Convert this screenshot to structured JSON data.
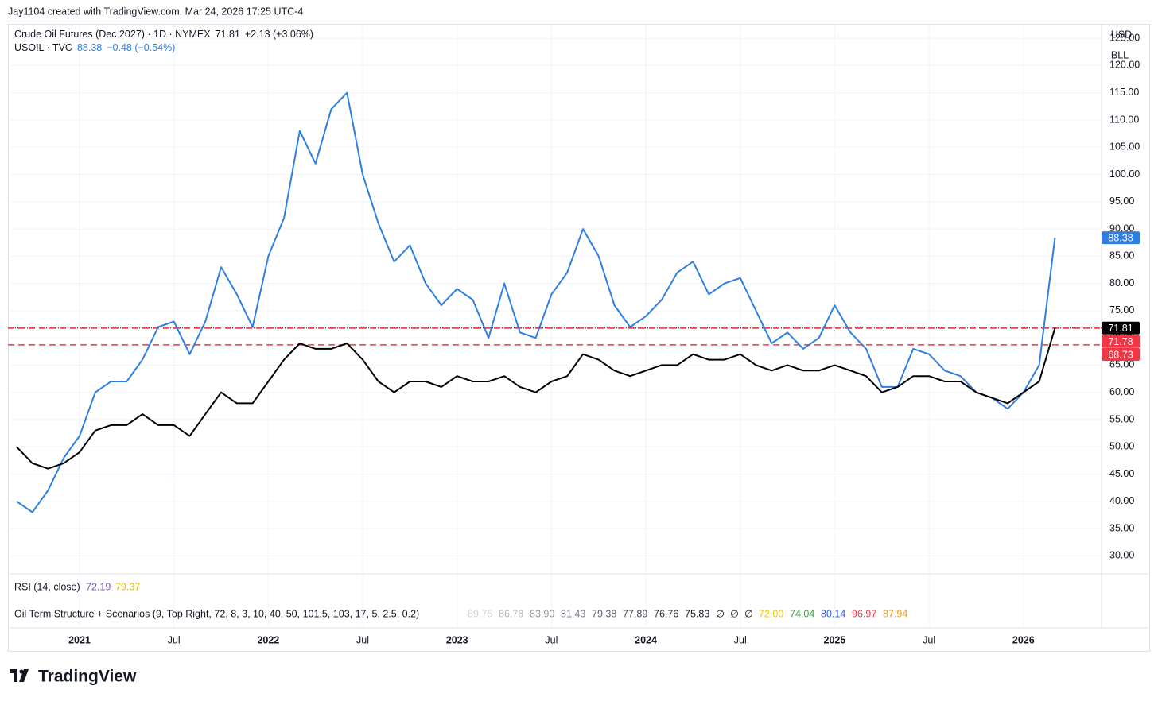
{
  "header": {
    "credit": "Jay1104 created with TradingView.com, Mar 24, 2026 17:25 UTC-4",
    "brand": "TradingView"
  },
  "chart_data": {
    "type": "line",
    "currency": "USD",
    "unit": "BLL",
    "categories": [
      null,
      null,
      null,
      null,
      "2021",
      null,
      null,
      null,
      null,
      null,
      "Jul",
      null,
      null,
      null,
      null,
      null,
      "2022",
      null,
      null,
      null,
      null,
      null,
      "Jul",
      null,
      null,
      null,
      null,
      null,
      "2023",
      null,
      null,
      null,
      null,
      null,
      "Jul",
      null,
      null,
      null,
      null,
      null,
      "2024",
      null,
      null,
      null,
      null,
      null,
      "Jul",
      null,
      null,
      null,
      null,
      null,
      "2025",
      null,
      null,
      null,
      null,
      null,
      "Jul",
      null,
      null,
      null,
      null,
      null,
      "2026",
      null,
      null
    ],
    "bold_labels": [
      "2021",
      "2022",
      "2023",
      "2024",
      "2025",
      "2026"
    ],
    "series": [
      {
        "name": "Crude Oil Futures (Dec 2027) · 1D · NYMEX",
        "last": 71.81,
        "change": "+2.13 (+3.06%)",
        "color": "#000000",
        "values": [
          50,
          47,
          46,
          47,
          49,
          53,
          54,
          54,
          56,
          54,
          54,
          52,
          56,
          60,
          58,
          58,
          62,
          66,
          69,
          68,
          68,
          69,
          66,
          62,
          60,
          62,
          62,
          61,
          63,
          62,
          62,
          63,
          61,
          60,
          62,
          63,
          67,
          66,
          64,
          63,
          64,
          65,
          65,
          67,
          66,
          66,
          67,
          65,
          64,
          65,
          64,
          64,
          65,
          64,
          63,
          60,
          61,
          63,
          63,
          62,
          62,
          60,
          59,
          58,
          60,
          62,
          71.81
        ]
      },
      {
        "name": "USOIL · TVC",
        "last": 88.38,
        "change": "−0.48 (−0.54%)",
        "color": "#2f7fe0",
        "values": [
          40,
          38,
          42,
          48,
          52,
          60,
          62,
          62,
          66,
          72,
          73,
          67,
          73,
          83,
          78,
          72,
          85,
          92,
          108,
          102,
          112,
          115,
          100,
          91,
          84,
          87,
          80,
          76,
          79,
          77,
          70,
          80,
          71,
          70,
          78,
          82,
          90,
          85,
          76,
          72,
          74,
          77,
          82,
          84,
          78,
          80,
          81,
          75,
          69,
          71,
          68,
          70,
          76,
          71,
          68,
          61,
          61,
          68,
          67,
          64,
          63,
          60,
          59,
          57,
          60,
          65,
          88.38
        ]
      }
    ],
    "ylim": [
      26.7,
      127.5
    ],
    "yticks": [
      {
        "value": 30,
        "label": "30.00"
      },
      {
        "value": 35,
        "label": "35.00"
      },
      {
        "value": 40,
        "label": "40.00"
      },
      {
        "value": 45,
        "label": "45.00"
      },
      {
        "value": 50,
        "label": "50.00"
      },
      {
        "value": 55,
        "label": "55.00"
      },
      {
        "value": 60,
        "label": "60.00"
      },
      {
        "value": 65,
        "label": "65.00"
      },
      {
        "value": 70,
        "label": "70.00"
      },
      {
        "value": 75,
        "label": "75.00"
      },
      {
        "value": 80,
        "label": "80.00"
      },
      {
        "value": 85,
        "label": "85.00"
      },
      {
        "value": 90,
        "label": "90.00"
      },
      {
        "value": 95,
        "label": "95.00"
      },
      {
        "value": 100,
        "label": "100.00"
      },
      {
        "value": 105,
        "label": "105.00"
      },
      {
        "value": 110,
        "label": "110.00"
      },
      {
        "value": 115,
        "label": "115.00"
      },
      {
        "value": 120,
        "label": "120.00"
      },
      {
        "value": 125,
        "label": "125.00"
      }
    ],
    "grid": true,
    "levels": [
      {
        "value": 71.81,
        "color": "#000000",
        "style": "dotted"
      },
      {
        "value": 71.78,
        "color": "#f23645",
        "style": "dashed"
      },
      {
        "value": 68.73,
        "color": "#f23645",
        "style": "dashed"
      }
    ],
    "markers": [
      {
        "value": 88.38,
        "color": "#2f7fe0"
      },
      {
        "value": 71.81,
        "color": "#000000"
      },
      {
        "value": 71.78,
        "color": "#f23645"
      },
      {
        "value": 68.73,
        "color": "#f23645"
      }
    ]
  },
  "indicators": [
    {
      "name": "RSI (14, close)",
      "readings": [
        {
          "text": "72.19",
          "color": "#7e57c2"
        },
        {
          "text": "79.37",
          "color": "#e6b800"
        }
      ]
    },
    {
      "name": "Oil Term Structure + Scenarios (9, Top Right, 72, 8, 3, 10, 40, 50, 101.5, 103, 17, 5, 2.5, 0.2)",
      "readings": [
        {
          "text": "89.75",
          "color": "#d1d4dc"
        },
        {
          "text": "86.78",
          "color": "#b2b5be"
        },
        {
          "text": "83.90",
          "color": "#9598a1"
        },
        {
          "text": "81.43",
          "color": "#787b86"
        },
        {
          "text": "79.38",
          "color": "#5d606b"
        },
        {
          "text": "77.89",
          "color": "#434651"
        },
        {
          "text": "76.76",
          "color": "#2a2e39"
        },
        {
          "text": "75.83",
          "color": "#131722"
        },
        {
          "text": "∅",
          "color": "#131722"
        },
        {
          "text": "∅",
          "color": "#131722"
        },
        {
          "text": "∅",
          "color": "#131722"
        },
        {
          "text": "72.00",
          "color": "#f2c800"
        },
        {
          "text": "74.04",
          "color": "#43a047"
        },
        {
          "text": "80.14",
          "color": "#2962ff"
        },
        {
          "text": "96.97",
          "color": "#f23645"
        },
        {
          "text": "87.94",
          "color": "#f59d0a"
        }
      ]
    }
  ]
}
